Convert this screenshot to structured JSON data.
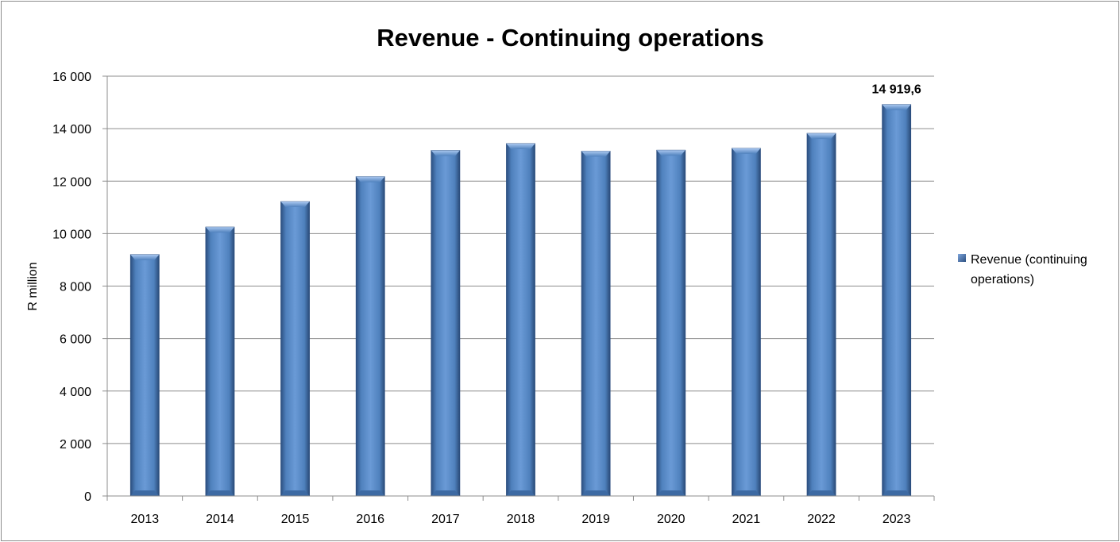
{
  "chart_data": {
    "type": "bar",
    "title": "Revenue - Continuing operations",
    "ylabel": "R million",
    "xlabel": "",
    "categories": [
      "2013",
      "2014",
      "2015",
      "2016",
      "2017",
      "2018",
      "2019",
      "2020",
      "2021",
      "2022",
      "2023"
    ],
    "series": [
      {
        "name": "Revenue (continuing operations)",
        "values": [
          9200,
          10250,
          11220,
          12170,
          13170,
          13430,
          13140,
          13180,
          13250,
          13820,
          14919.6
        ]
      }
    ],
    "ylim": [
      0,
      16000
    ],
    "yticks": [
      0,
      2000,
      4000,
      6000,
      8000,
      10000,
      12000,
      14000,
      16000
    ],
    "ytick_labels": [
      "0",
      "2 000",
      "4 000",
      "6 000",
      "8 000",
      "10 000",
      "12 000",
      "14 000",
      "16 000"
    ],
    "data_labels": [
      {
        "category": "2023",
        "text": "14 919,6"
      }
    ],
    "legend_lines": [
      "Revenue (continuing",
      "operations)"
    ],
    "grid": true,
    "legend_position": "right",
    "bar_color": "#4f81bd"
  }
}
